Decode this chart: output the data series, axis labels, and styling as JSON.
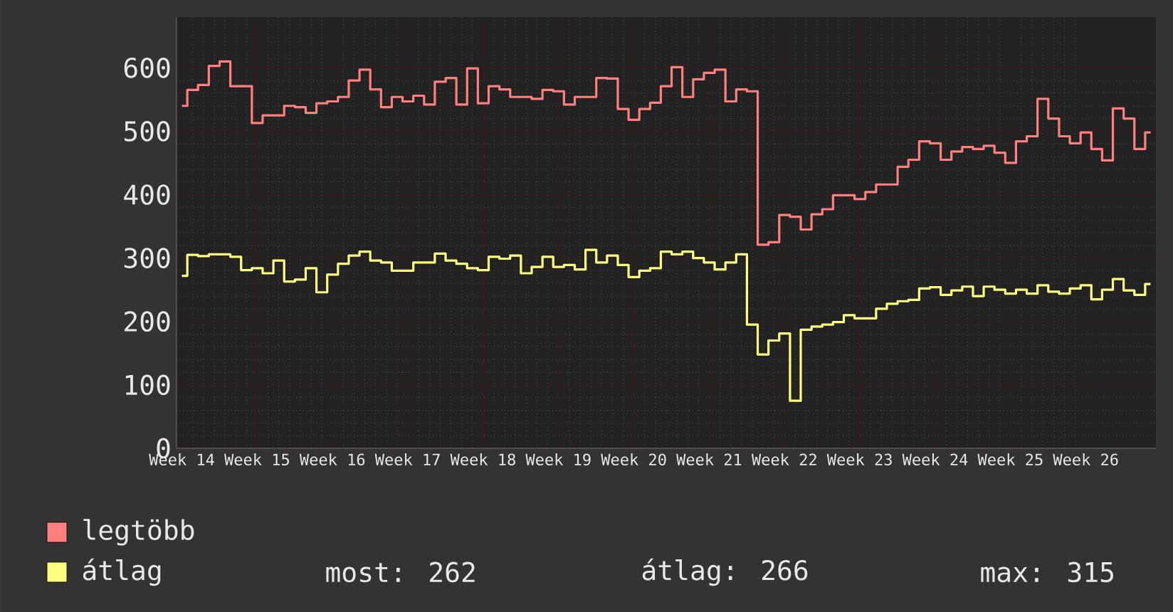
{
  "chart_data": {
    "type": "step",
    "categories": [
      "Week 14",
      null,
      null,
      null,
      null,
      null,
      null,
      "Week 15",
      null,
      null,
      null,
      null,
      null,
      null,
      "Week 16",
      null,
      null,
      null,
      null,
      null,
      null,
      "Week 17",
      null,
      null,
      null,
      null,
      null,
      null,
      "Week 18",
      null,
      null,
      null,
      null,
      null,
      null,
      "Week 19",
      null,
      null,
      null,
      null,
      null,
      null,
      "Week 20",
      null,
      null,
      null,
      null,
      null,
      null,
      "Week 21",
      null,
      null,
      null,
      null,
      null,
      null,
      "Week 22",
      null,
      null,
      null,
      null,
      null,
      null,
      "Week 23",
      null,
      null,
      null,
      null,
      null,
      null,
      "Week 24",
      null,
      null,
      null,
      null,
      null,
      null,
      "Week 25",
      null,
      null,
      null,
      null,
      null,
      null,
      "Week 26",
      null,
      null,
      null,
      null,
      null,
      null
    ],
    "ylim": [
      0,
      680
    ],
    "yticks": [
      0,
      100,
      200,
      300,
      400,
      500,
      600
    ],
    "grid": true,
    "legend": "bottom",
    "marker": "none",
    "line_style": "solid",
    "series": [
      {
        "name": "legtöbb",
        "color": "#ff7f7f",
        "values": [
          540,
          565,
          573,
          603,
          610,
          571,
          571,
          513,
          525,
          525,
          540,
          538,
          529,
          544,
          547,
          554,
          580,
          597,
          566,
          538,
          554,
          547,
          556,
          542,
          578,
          584,
          542,
          599,
          544,
          571,
          566,
          554,
          554,
          551,
          565,
          563,
          542,
          554,
          554,
          584,
          583,
          535,
          518,
          535,
          545,
          571,
          601,
          554,
          582,
          592,
          597,
          547,
          566,
          563,
          321,
          325,
          368,
          365,
          345,
          369,
          377,
          399,
          399,
          393,
          404,
          416,
          416,
          444,
          455,
          484,
          481,
          455,
          468,
          475,
          472,
          477,
          466,
          450,
          484,
          492,
          551,
          520,
          492,
          481,
          498,
          472,
          454,
          536,
          520,
          472,
          498
        ]
      },
      {
        "name": "átlag",
        "color": "#ffff7f",
        "values": [
          272,
          305,
          303,
          306,
          306,
          302,
          281,
          284,
          276,
          296,
          263,
          266,
          284,
          246,
          274,
          291,
          304,
          310,
          296,
          293,
          280,
          280,
          293,
          293,
          307,
          296,
          291,
          284,
          281,
          302,
          299,
          304,
          276,
          286,
          302,
          286,
          289,
          282,
          313,
          293,
          304,
          289,
          270,
          280,
          284,
          310,
          306,
          310,
          300,
          293,
          282,
          293,
          306,
          195,
          148,
          170,
          181,
          75,
          187,
          192,
          195,
          199,
          210,
          205,
          205,
          220,
          228,
          232,
          234,
          252,
          254,
          242,
          249,
          255,
          240,
          255,
          250,
          244,
          250,
          244,
          257,
          247,
          244,
          252,
          257,
          235,
          250,
          267,
          249,
          242,
          259
        ]
      }
    ],
    "annotations": [
      "most: 262",
      "átlag: 266",
      "max: 315"
    ]
  }
}
